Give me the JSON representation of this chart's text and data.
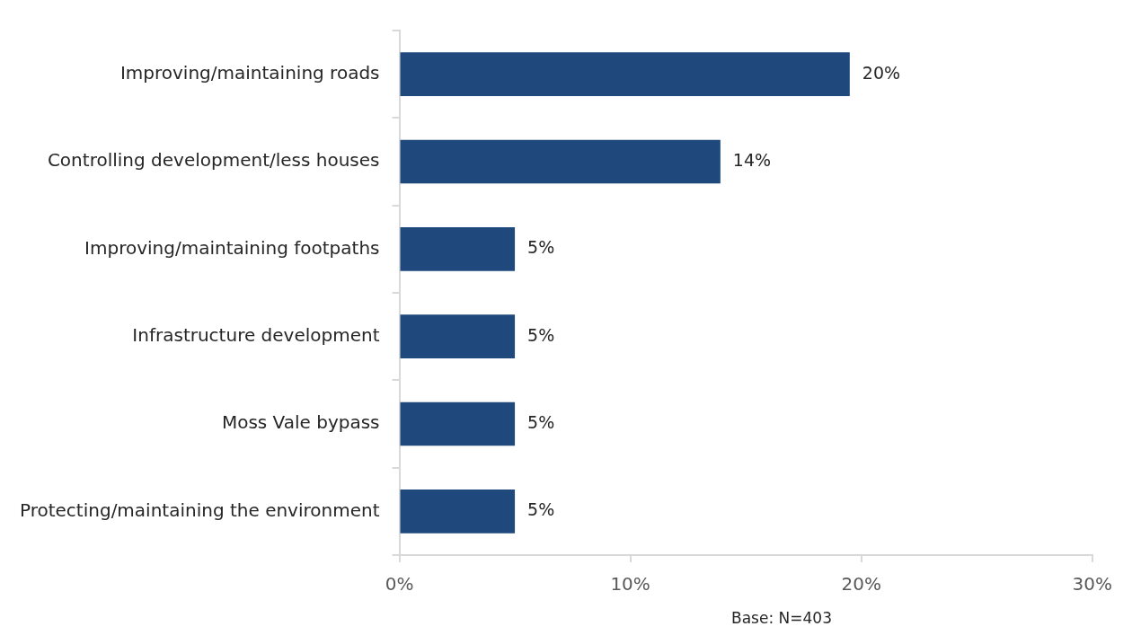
{
  "chart_data": {
    "type": "bar",
    "orientation": "horizontal",
    "categories": [
      "Improving/maintaining roads",
      "Controlling development/less houses",
      "Improving/maintaining footpaths",
      "Infrastructure development",
      "Moss Vale bypass",
      "Protecting/maintaining the environment"
    ],
    "values": [
      19.5,
      13.9,
      5,
      5,
      5,
      5
    ],
    "value_labels": [
      "20%",
      "14%",
      "5%",
      "5%",
      "5%",
      "5%"
    ],
    "color": "#1f497d",
    "xlim": [
      0,
      30
    ],
    "xticks": [
      {
        "value": 0,
        "label": "0%"
      },
      {
        "value": 10,
        "label": "10%"
      },
      {
        "value": 20,
        "label": "20%"
      },
      {
        "value": 30,
        "label": "30%"
      }
    ],
    "grid": false,
    "legend": false,
    "annotations": [
      "Base: N=403"
    ]
  }
}
